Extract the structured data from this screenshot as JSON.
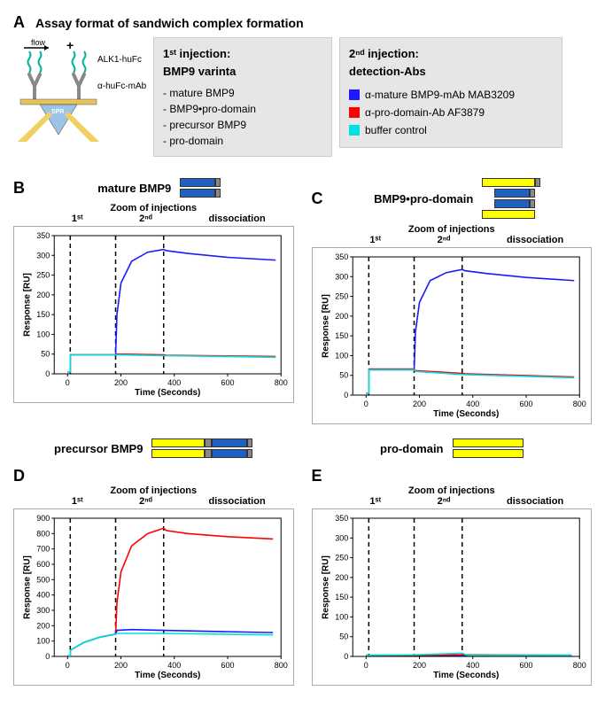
{
  "panelA": {
    "label": "A",
    "title": "Assay format of sandwich complex formation",
    "diagram": {
      "flow_label": "flow",
      "plus": "+",
      "alk1": "ALK1-huFc",
      "mab": "α-huFc-mAb",
      "spr": "SPR",
      "colors": {
        "coil": "#00b0a0",
        "antibody": "#999999",
        "prism": "#6fa8dc",
        "beam": "#f0d060",
        "chip_gold": "#e6c25b"
      }
    },
    "box1": {
      "header_line1": "1ˢᵗ injection:",
      "header_line2": "BMP9 varinta",
      "items": [
        "- mature BMP9",
        "- BMP9•pro-domain",
        "- precursor BMP9",
        "- pro-domain"
      ]
    },
    "box2": {
      "header_line1": "2ⁿᵈ injection:",
      "header_line2": "detection-Abs",
      "legend": [
        {
          "color": "#1a1aff",
          "label": "α-mature BMP9-mAb MAB3209"
        },
        {
          "color": "#ff0000",
          "label": "α-pro-domain-Ab AF3879"
        },
        {
          "color": "#00e0e0",
          "label": "buffer control"
        }
      ]
    }
  },
  "chart_common": {
    "xlabel": "Time (Seconds)",
    "ylabel": "Response [RU]",
    "xlim": [
      -50,
      800
    ],
    "xticks": [
      0,
      200,
      400,
      600,
      800
    ],
    "annot_top": "Zoom of injections",
    "annot_cols": [
      "1ˢᵗ",
      "2ⁿᵈ",
      "dissociation"
    ],
    "vlines_x": [
      10,
      180,
      360
    ],
    "axis_color": "#000000",
    "grid_color": "#dddddd",
    "label_fontsize": 10,
    "tick_fontsize": 9
  },
  "panelB": {
    "label": "B",
    "variant_title": "mature BMP9",
    "cartoon": [
      [
        {
          "w": 40,
          "c": "#2060c0"
        },
        {
          "w": 6,
          "c": "#888"
        }
      ],
      [
        {
          "w": 40,
          "c": "#2060c0"
        },
        {
          "w": 6,
          "c": "#888"
        }
      ]
    ],
    "ylim": [
      0,
      350
    ],
    "ytick_step": 50,
    "series": {
      "blue": {
        "color": "#1a1aff",
        "pts": [
          [
            0,
            5
          ],
          [
            10,
            5
          ],
          [
            10,
            48
          ],
          [
            180,
            48
          ],
          [
            185,
            150
          ],
          [
            200,
            230
          ],
          [
            240,
            285
          ],
          [
            300,
            308
          ],
          [
            360,
            315
          ],
          [
            370,
            312
          ],
          [
            450,
            305
          ],
          [
            600,
            295
          ],
          [
            780,
            288
          ]
        ]
      },
      "red": {
        "color": "#ff0000",
        "pts": [
          [
            0,
            5
          ],
          [
            10,
            5
          ],
          [
            10,
            48
          ],
          [
            180,
            48
          ],
          [
            185,
            50
          ],
          [
            360,
            48
          ],
          [
            370,
            47
          ],
          [
            780,
            44
          ]
        ]
      },
      "cyan": {
        "color": "#00e0e0",
        "pts": [
          [
            0,
            5
          ],
          [
            10,
            5
          ],
          [
            10,
            48
          ],
          [
            180,
            48
          ],
          [
            185,
            48
          ],
          [
            360,
            46
          ],
          [
            780,
            42
          ]
        ]
      }
    }
  },
  "panelC": {
    "label": "C",
    "variant_title": "BMP9•pro-domain",
    "cartoon": [
      [
        {
          "w": 60,
          "c": "#ffff00"
        },
        {
          "w": 6,
          "c": "#888",
          "off": 0
        }
      ],
      [
        {
          "w": 40,
          "c": "#2060c0",
          "off": 14
        },
        {
          "w": 6,
          "c": "#888"
        }
      ],
      [
        {
          "w": 40,
          "c": "#2060c0",
          "off": 14
        },
        {
          "w": 6,
          "c": "#888"
        }
      ],
      [
        {
          "w": 60,
          "c": "#ffff00"
        }
      ]
    ],
    "ylim": [
      0,
      350
    ],
    "ytick_step": 50,
    "series": {
      "blue": {
        "color": "#1a1aff",
        "pts": [
          [
            0,
            5
          ],
          [
            10,
            5
          ],
          [
            10,
            64
          ],
          [
            180,
            64
          ],
          [
            185,
            160
          ],
          [
            200,
            235
          ],
          [
            240,
            290
          ],
          [
            300,
            310
          ],
          [
            360,
            318
          ],
          [
            370,
            315
          ],
          [
            450,
            308
          ],
          [
            600,
            298
          ],
          [
            780,
            290
          ]
        ]
      },
      "red": {
        "color": "#ff0000",
        "pts": [
          [
            0,
            5
          ],
          [
            10,
            5
          ],
          [
            10,
            66
          ],
          [
            180,
            66
          ],
          [
            185,
            62
          ],
          [
            360,
            55
          ],
          [
            370,
            54
          ],
          [
            780,
            46
          ]
        ]
      },
      "cyan": {
        "color": "#00e0e0",
        "pts": [
          [
            0,
            5
          ],
          [
            10,
            5
          ],
          [
            10,
            64
          ],
          [
            180,
            64
          ],
          [
            185,
            60
          ],
          [
            360,
            52
          ],
          [
            780,
            44
          ]
        ]
      }
    }
  },
  "panelD": {
    "label": "D",
    "variant_title": "precursor BMP9",
    "cartoon": [
      [
        {
          "w": 60,
          "c": "#ffff00"
        },
        {
          "w": 8,
          "c": "#888"
        },
        {
          "w": 40,
          "c": "#2060c0"
        },
        {
          "w": 6,
          "c": "#888"
        }
      ],
      [
        {
          "w": 60,
          "c": "#ffff00"
        },
        {
          "w": 8,
          "c": "#888"
        },
        {
          "w": 40,
          "c": "#2060c0"
        },
        {
          "w": 6,
          "c": "#888"
        }
      ]
    ],
    "ylim": [
      0,
      900
    ],
    "ytick_step": 100,
    "series": {
      "red": {
        "color": "#ff0000",
        "pts": [
          [
            0,
            5
          ],
          [
            10,
            5
          ],
          [
            10,
            40
          ],
          [
            60,
            90
          ],
          [
            120,
            125
          ],
          [
            180,
            145
          ],
          [
            185,
            350
          ],
          [
            200,
            550
          ],
          [
            240,
            720
          ],
          [
            300,
            800
          ],
          [
            360,
            835
          ],
          [
            370,
            820
          ],
          [
            450,
            800
          ],
          [
            600,
            780
          ],
          [
            770,
            765
          ]
        ]
      },
      "blue": {
        "color": "#1a1aff",
        "pts": [
          [
            0,
            5
          ],
          [
            10,
            5
          ],
          [
            10,
            40
          ],
          [
            60,
            90
          ],
          [
            120,
            125
          ],
          [
            180,
            145
          ],
          [
            185,
            170
          ],
          [
            240,
            175
          ],
          [
            360,
            170
          ],
          [
            770,
            155
          ]
        ]
      },
      "cyan": {
        "color": "#00e0e0",
        "pts": [
          [
            0,
            5
          ],
          [
            10,
            5
          ],
          [
            10,
            40
          ],
          [
            60,
            90
          ],
          [
            120,
            125
          ],
          [
            180,
            145
          ],
          [
            185,
            150
          ],
          [
            360,
            150
          ],
          [
            770,
            140
          ]
        ]
      }
    }
  },
  "panelE": {
    "label": "E",
    "variant_title": "pro-domain",
    "cartoon": [
      [
        {
          "w": 80,
          "c": "#ffff00"
        }
      ],
      [
        {
          "w": 80,
          "c": "#ffff00"
        }
      ]
    ],
    "ylim": [
      0,
      350
    ],
    "ytick_step": 50,
    "series": {
      "blue": {
        "color": "#1a1aff",
        "pts": [
          [
            0,
            3
          ],
          [
            10,
            3
          ],
          [
            180,
            3
          ],
          [
            360,
            3
          ],
          [
            770,
            3
          ]
        ]
      },
      "red": {
        "color": "#ff0000",
        "pts": [
          [
            0,
            3
          ],
          [
            10,
            3
          ],
          [
            180,
            3
          ],
          [
            360,
            4
          ],
          [
            770,
            3
          ]
        ]
      },
      "cyan": {
        "color": "#00e0e0",
        "pts": [
          [
            0,
            3
          ],
          [
            10,
            3
          ],
          [
            180,
            4
          ],
          [
            360,
            8
          ],
          [
            380,
            3
          ],
          [
            770,
            3
          ]
        ]
      }
    }
  }
}
